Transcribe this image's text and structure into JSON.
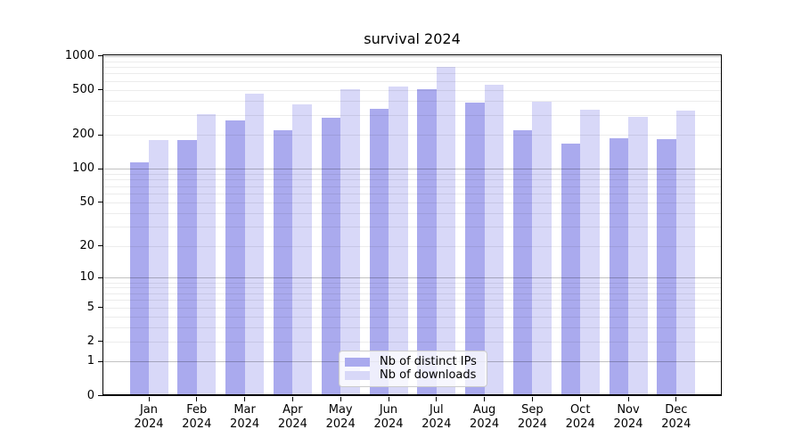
{
  "title": "survival 2024",
  "chart_data": {
    "type": "bar",
    "title": "survival 2024",
    "categories": [
      "Jan",
      "Feb",
      "Mar",
      "Apr",
      "May",
      "Jun",
      "Jul",
      "Aug",
      "Sep",
      "Oct",
      "Nov",
      "Dec"
    ],
    "x_sublabel": "2024",
    "series": [
      {
        "name": "Nb of distinct IPs",
        "color": "#aaaaee",
        "values": [
          110,
          174,
          258,
          211,
          272,
          330,
          492,
          374,
          211,
          161,
          181,
          176
        ]
      },
      {
        "name": "Nb of downloads",
        "color": "#d8d8f8",
        "values": [
          174,
          296,
          446,
          358,
          490,
          519,
          765,
          538,
          380,
          324,
          281,
          314
        ]
      }
    ],
    "yscale": "log10(1+y)",
    "yticks": [
      0,
      1,
      2,
      5,
      10,
      20,
      50,
      100,
      200,
      500,
      1000
    ],
    "major_gridlines": [
      1,
      10,
      100,
      1000
    ],
    "ylim": [
      0,
      1000
    ],
    "grid": "horizontal, minor lines at 2-9 per decade",
    "legend_position": "lower center",
    "background": "#ffffff",
    "spine_color": "#000000"
  }
}
